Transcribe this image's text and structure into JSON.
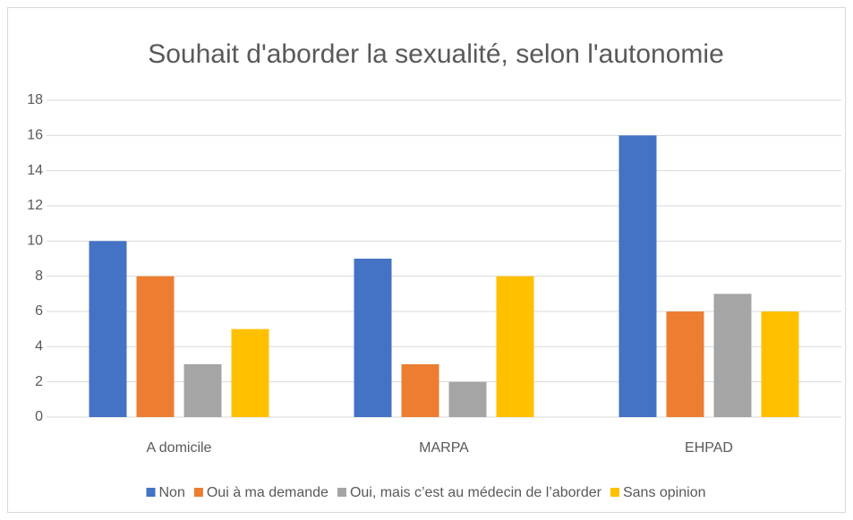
{
  "chart_data": {
    "type": "bar",
    "title": "Souhait d'aborder la sexualité, selon l'autonomie",
    "categories": [
      "A domicile",
      "MARPA",
      "EHPAD"
    ],
    "series": [
      {
        "name": "Non",
        "color": "#4472c4",
        "values": [
          10,
          9,
          16
        ]
      },
      {
        "name": "Oui à ma demande",
        "color": "#ed7d31",
        "values": [
          8,
          3,
          6
        ]
      },
      {
        "name": "Oui, mais c’est au médecin de l’aborder",
        "color": "#a5a5a5",
        "values": [
          3,
          2,
          7
        ]
      },
      {
        "name": "Sans opinion",
        "color": "#ffc000",
        "values": [
          5,
          8,
          6
        ]
      }
    ],
    "ylim": [
      0,
      18
    ],
    "yticks": [
      0,
      2,
      4,
      6,
      8,
      10,
      12,
      14,
      16,
      18
    ],
    "grid": true,
    "legend": "bottom"
  }
}
